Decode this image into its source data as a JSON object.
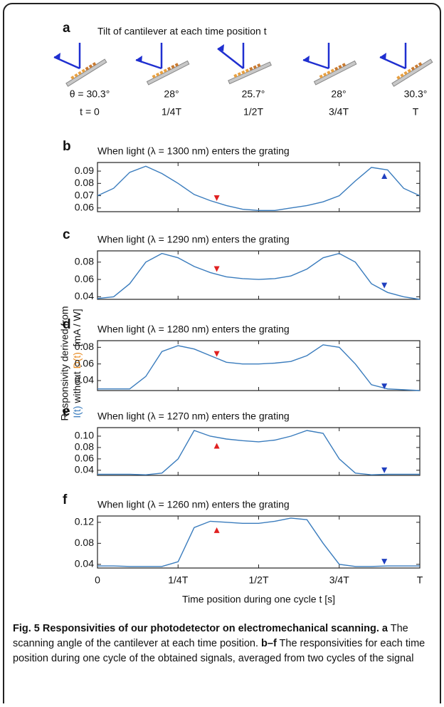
{
  "panel_a": {
    "label": "a",
    "title": "Tilt of cantilever at each time position t",
    "angles": [
      "θ = 30.3°",
      "28°",
      "25.7°",
      "28°",
      "30.3°"
    ],
    "times": [
      "t = 0",
      "1/4T",
      "1/2T",
      "3/4T",
      "T"
    ]
  },
  "y_axis_label": {
    "line1": "Responsivity derived from",
    "part_i": "I(t)",
    "part_mid": " without ",
    "part_d": "D(t)",
    "part_unit": "  [mA / W]"
  },
  "chart_data": [
    {
      "type": "line",
      "label": "b",
      "title": "When light (λ = 1300 nm) enters the grating",
      "color": "#3a7cbd",
      "x": [
        0,
        0.05,
        0.1,
        0.15,
        0.2,
        0.25,
        0.3,
        0.35,
        0.4,
        0.45,
        0.5,
        0.55,
        0.6,
        0.65,
        0.7,
        0.75,
        0.8,
        0.85,
        0.9,
        0.95,
        1
      ],
      "values": [
        0.07,
        0.076,
        0.089,
        0.094,
        0.088,
        0.08,
        0.071,
        0.066,
        0.062,
        0.059,
        0.058,
        0.058,
        0.06,
        0.062,
        0.065,
        0.07,
        0.082,
        0.093,
        0.091,
        0.076,
        0.07
      ],
      "markers": [
        {
          "x": 0.37,
          "y": 0.068,
          "color": "#e02020",
          "shape": "down"
        },
        {
          "x": 0.89,
          "y": 0.086,
          "color": "#1f3fbf",
          "shape": "up"
        }
      ],
      "xlim": [
        0,
        1
      ],
      "xticks": [
        0,
        0.25,
        0.5,
        0.75,
        1
      ],
      "ylim": [
        0.057,
        0.097
      ],
      "yticks": [
        0.06,
        0.07,
        0.08,
        0.09
      ]
    },
    {
      "type": "line",
      "label": "c",
      "title": "When light (λ = 1290 nm) enters the grating",
      "color": "#3a7cbd",
      "x": [
        0,
        0.05,
        0.1,
        0.15,
        0.2,
        0.25,
        0.3,
        0.35,
        0.4,
        0.45,
        0.5,
        0.55,
        0.6,
        0.65,
        0.7,
        0.75,
        0.8,
        0.85,
        0.9,
        0.95,
        1
      ],
      "values": [
        0.038,
        0.04,
        0.055,
        0.08,
        0.09,
        0.085,
        0.075,
        0.068,
        0.063,
        0.061,
        0.06,
        0.061,
        0.064,
        0.072,
        0.085,
        0.09,
        0.08,
        0.055,
        0.045,
        0.04,
        0.037
      ],
      "markers": [
        {
          "x": 0.37,
          "y": 0.072,
          "color": "#e02020",
          "shape": "down"
        },
        {
          "x": 0.89,
          "y": 0.053,
          "color": "#1f3fbf",
          "shape": "down"
        }
      ],
      "xlim": [
        0,
        1
      ],
      "xticks": [
        0,
        0.25,
        0.5,
        0.75,
        1
      ],
      "ylim": [
        0.037,
        0.093
      ],
      "yticks": [
        0.04,
        0.06,
        0.08
      ]
    },
    {
      "type": "line",
      "label": "d",
      "title": "When light (λ = 1280 nm) enters the grating",
      "color": "#3a7cbd",
      "x": [
        0,
        0.05,
        0.1,
        0.15,
        0.2,
        0.25,
        0.3,
        0.35,
        0.4,
        0.45,
        0.5,
        0.55,
        0.6,
        0.65,
        0.7,
        0.75,
        0.8,
        0.85,
        0.9,
        0.95,
        1
      ],
      "values": [
        0.03,
        0.03,
        0.03,
        0.045,
        0.075,
        0.082,
        0.078,
        0.07,
        0.062,
        0.06,
        0.06,
        0.061,
        0.063,
        0.07,
        0.083,
        0.08,
        0.06,
        0.035,
        0.03,
        0.029,
        0.028
      ],
      "markers": [
        {
          "x": 0.37,
          "y": 0.072,
          "color": "#e02020",
          "shape": "down"
        },
        {
          "x": 0.89,
          "y": 0.033,
          "color": "#1f3fbf",
          "shape": "down"
        }
      ],
      "xlim": [
        0,
        1
      ],
      "xticks": [
        0,
        0.25,
        0.5,
        0.75,
        1
      ],
      "ylim": [
        0.028,
        0.088
      ],
      "yticks": [
        0.04,
        0.06,
        0.08
      ]
    },
    {
      "type": "line",
      "label": "e",
      "title": "When light (λ = 1270 nm) enters the grating",
      "color": "#3a7cbd",
      "x": [
        0,
        0.05,
        0.1,
        0.15,
        0.2,
        0.25,
        0.3,
        0.35,
        0.4,
        0.45,
        0.5,
        0.55,
        0.6,
        0.65,
        0.7,
        0.75,
        0.8,
        0.85,
        0.9,
        0.95,
        1
      ],
      "values": [
        0.033,
        0.033,
        0.033,
        0.032,
        0.035,
        0.06,
        0.11,
        0.1,
        0.095,
        0.092,
        0.09,
        0.093,
        0.1,
        0.11,
        0.105,
        0.06,
        0.035,
        0.032,
        0.033,
        0.033,
        0.033
      ],
      "markers": [
        {
          "x": 0.37,
          "y": 0.083,
          "color": "#e02020",
          "shape": "up"
        },
        {
          "x": 0.89,
          "y": 0.04,
          "color": "#1f3fbf",
          "shape": "down"
        }
      ],
      "xlim": [
        0,
        1
      ],
      "xticks": [
        0,
        0.25,
        0.5,
        0.75,
        1
      ],
      "ylim": [
        0.031,
        0.115
      ],
      "yticks": [
        0.04,
        0.06,
        0.08,
        {
          "value": 0.1,
          "label": "0.10"
        }
      ]
    },
    {
      "type": "line",
      "label": "f",
      "title": "When light (λ = 1260 nm) enters the grating",
      "color": "#3a7cbd",
      "x": [
        0,
        0.05,
        0.1,
        0.15,
        0.2,
        0.25,
        0.3,
        0.35,
        0.4,
        0.45,
        0.5,
        0.55,
        0.6,
        0.65,
        0.7,
        0.75,
        0.8,
        0.85,
        0.9,
        0.95,
        1
      ],
      "values": [
        0.037,
        0.037,
        0.036,
        0.036,
        0.036,
        0.045,
        0.11,
        0.122,
        0.12,
        0.118,
        0.118,
        0.122,
        0.128,
        0.125,
        0.08,
        0.04,
        0.036,
        0.036,
        0.037,
        0.037,
        0.037
      ],
      "markers": [
        {
          "x": 0.37,
          "y": 0.105,
          "color": "#e02020",
          "shape": "up"
        },
        {
          "x": 0.89,
          "y": 0.045,
          "color": "#1f3fbf",
          "shape": "down"
        }
      ],
      "xlim": [
        0,
        1
      ],
      "xticks": [
        0,
        {
          "value": 0.25,
          "label": "1/4T"
        },
        {
          "value": 0.5,
          "label": "1/2T"
        },
        {
          "value": 0.75,
          "label": "3/4T"
        },
        {
          "value": 1,
          "label": "T"
        }
      ],
      "ylim": [
        0.033,
        0.132
      ],
      "yticks": [
        0.04,
        0.08,
        0.12
      ],
      "x_label": "Time position during one cycle t  [s]"
    }
  ],
  "caption": {
    "title": "Fig. 5 Responsivities of our photodetector on electromechanical scanning.",
    "parts": [
      {
        "label": "a",
        "text": " The scanning angle of the cantilever at each time position. "
      },
      {
        "label": "b–f",
        "text": " The responsivities for each time position during one cycle of the obtained signals, averaged from two cycles of the signal"
      }
    ]
  }
}
